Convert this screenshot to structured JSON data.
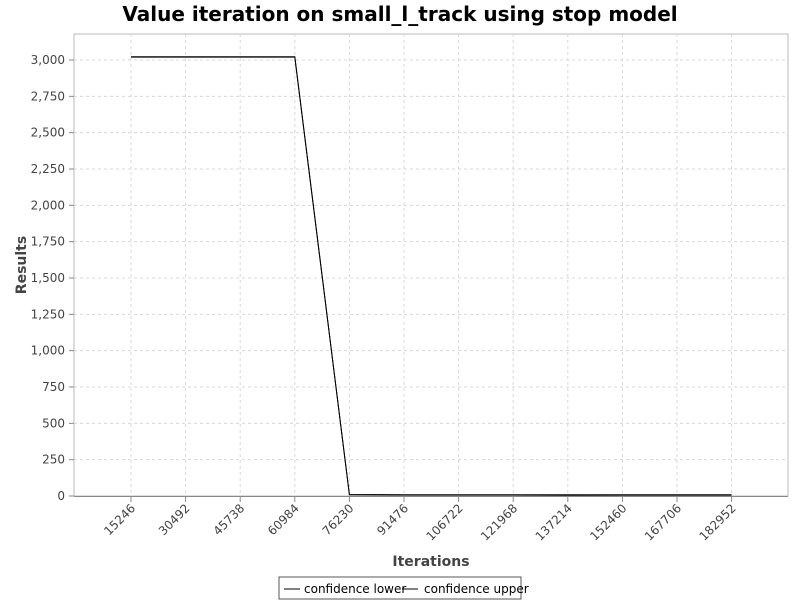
{
  "chart_data": {
    "type": "line",
    "title": "Value iteration on small_l_track using stop model",
    "xlabel": "Iterations",
    "ylabel": "Results",
    "x": [
      15246,
      30492,
      45738,
      60984,
      76230,
      91476,
      106722,
      121968,
      137214,
      152460,
      167706,
      182952
    ],
    "x_tick_labels": [
      "15246",
      "30492",
      "45738",
      "60984",
      "76230",
      "91476",
      "106722",
      "121968",
      "137214",
      "152460",
      "167706",
      "182952"
    ],
    "ylim": [
      0,
      3000
    ],
    "y_ticks": [
      0,
      250,
      500,
      750,
      1000,
      1250,
      1500,
      1750,
      2000,
      2250,
      2500,
      2750,
      3000
    ],
    "y_tick_labels": [
      "0",
      "250",
      "500",
      "750",
      "1,000",
      "1,250",
      "1,500",
      "1,750",
      "2,000",
      "2,250",
      "2,500",
      "2,750",
      "3,000"
    ],
    "grid": true,
    "legend_position": "bottom-center",
    "series": [
      {
        "name": "confidence lower",
        "color": "#000000",
        "values": [
          3020,
          3020,
          3020,
          3020,
          8,
          7,
          7,
          7,
          5,
          6,
          6,
          6
        ]
      },
      {
        "name": "confidence upper",
        "color": "#000000",
        "values": [
          3022,
          3022,
          3022,
          3022,
          10,
          9,
          9,
          9,
          8,
          8,
          8,
          8
        ]
      }
    ]
  }
}
